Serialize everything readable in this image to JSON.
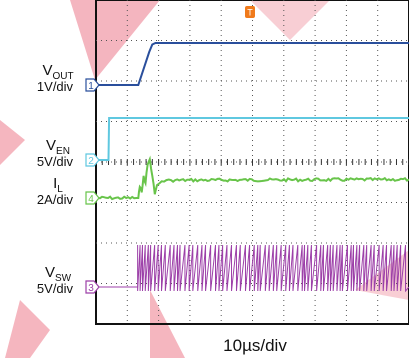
{
  "chart_data": {
    "type": "line",
    "title": "",
    "xlabel": "10µs/div",
    "x_unit": "µs",
    "x_per_div": 10,
    "x_divisions": 10,
    "y_divisions": 8,
    "grid": true,
    "trigger_marker": "T",
    "series": [
      {
        "name": "VOUT",
        "label_main": "V",
        "label_sub": "OUT",
        "scale": "1V/div",
        "channel": "1",
        "color": "#2a4f9c",
        "points": [
          [
            0,
            0
          ],
          [
            13.5,
            0
          ],
          [
            17,
            1.1
          ],
          [
            18,
            1.35
          ],
          [
            19,
            1.4
          ],
          [
            100,
            1.4
          ]
        ]
      },
      {
        "name": "VEN",
        "label_main": "V",
        "label_sub": "EN",
        "scale": "5V/div",
        "channel": "2",
        "color": "#5fc8e0",
        "points": [
          [
            0,
            0
          ],
          [
            4,
            0
          ],
          [
            4.2,
            1.0
          ],
          [
            100,
            1.0
          ]
        ]
      },
      {
        "name": "IL",
        "label_main": "I",
        "label_sub": "L",
        "scale": "2A/div",
        "channel": "4",
        "color": "#68c44a",
        "points": [
          [
            0,
            0
          ],
          [
            13.5,
            0
          ],
          [
            14,
            0.3
          ],
          [
            14.6,
            0.15
          ],
          [
            15.2,
            0.6
          ],
          [
            15.8,
            0.4
          ],
          [
            16.5,
            0.9
          ],
          [
            17.2,
            1.05
          ],
          [
            18,
            0.6
          ],
          [
            18.8,
            0.1
          ],
          [
            19.5,
            0.35
          ],
          [
            21,
            0.45
          ],
          [
            24,
            0.48
          ],
          [
            100,
            0.5
          ]
        ]
      },
      {
        "name": "VSW",
        "label_main": "V",
        "label_sub": "SW",
        "scale": "5V/div",
        "channel": "3",
        "color": "#9c3fa8",
        "switching_start_us": 13.3,
        "switching_high_v": 1.0,
        "points": [
          [
            0,
            0
          ],
          [
            100,
            0
          ]
        ]
      }
    ]
  }
}
